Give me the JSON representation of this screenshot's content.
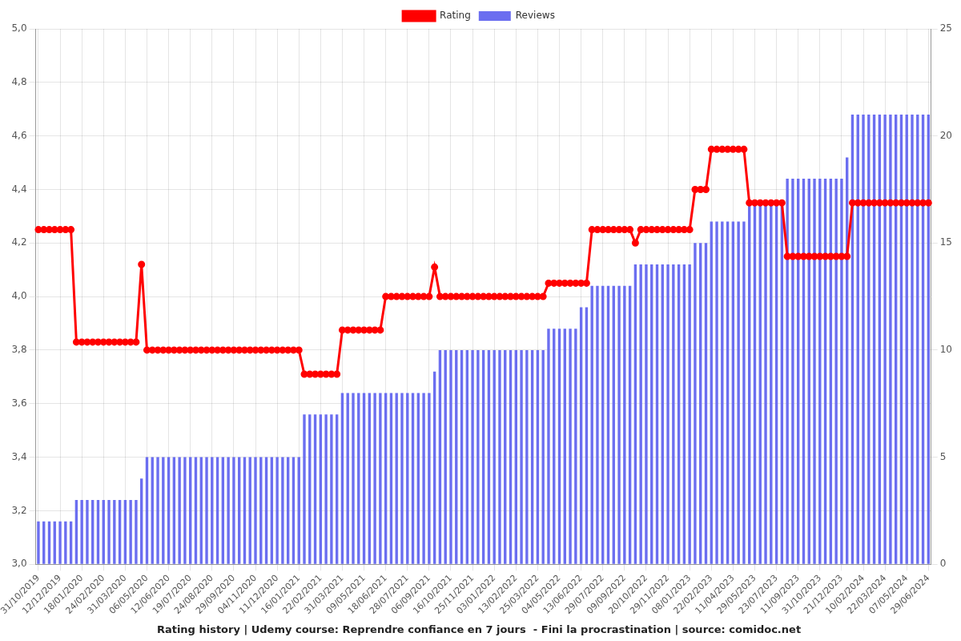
{
  "chart_data": {
    "type": "bar",
    "title": "Rating history | Udemy course: Reprendre confiance en 7 jours  - Fini la procrastination | source: comidoc.net",
    "categories": [
      "31/10/2019",
      null,
      null,
      null,
      "12/12/2019",
      null,
      null,
      null,
      "18/01/2020",
      null,
      null,
      null,
      "24/02/2020",
      null,
      null,
      null,
      "31/03/2020",
      null,
      null,
      null,
      "06/05/2020",
      null,
      null,
      null,
      "12/06/2020",
      null,
      null,
      null,
      "19/07/2020",
      null,
      null,
      null,
      "24/08/2020",
      null,
      null,
      null,
      "29/09/2020",
      null,
      null,
      null,
      "04/11/2020",
      null,
      null,
      null,
      "11/12/2020",
      null,
      null,
      null,
      "16/01/2021",
      null,
      null,
      null,
      "22/02/2021",
      null,
      null,
      null,
      "31/03/2021",
      null,
      null,
      null,
      "09/05/2021",
      null,
      null,
      null,
      "18/06/2021",
      null,
      null,
      null,
      "28/07/2021",
      null,
      null,
      null,
      "06/09/2021",
      null,
      null,
      null,
      "16/10/2021",
      null,
      null,
      null,
      "25/11/2021",
      null,
      null,
      null,
      "03/01/2022",
      null,
      null,
      null,
      "13/02/2022",
      null,
      null,
      null,
      "25/03/2022",
      null,
      null,
      null,
      "04/05/2022",
      null,
      null,
      null,
      "13/06/2022",
      null,
      null,
      null,
      "29/07/2022",
      null,
      null,
      null,
      "09/09/2022",
      null,
      null,
      null,
      "20/10/2022",
      null,
      null,
      null,
      "29/11/2022",
      null,
      null,
      null,
      "08/01/2023",
      null,
      null,
      null,
      "22/02/2023",
      null,
      null,
      null,
      "11/04/2023",
      null,
      null,
      null,
      "29/05/2023",
      null,
      null,
      null,
      "23/07/2023",
      null,
      null,
      null,
      "11/09/2023",
      null,
      null,
      null,
      "31/10/2023",
      null,
      null,
      null,
      "21/12/2023",
      null,
      null,
      null,
      "10/02/2024",
      null,
      null,
      null,
      "22/03/2024",
      null,
      null,
      null,
      "07/05/2024",
      null,
      null,
      null,
      "29/06/2024"
    ],
    "series": [
      {
        "name": "Rating",
        "type": "line",
        "color": "#ff0000",
        "marker": "circle",
        "values": [
          4.25,
          4.25,
          4.25,
          4.25,
          4.25,
          4.25,
          4.25,
          3.83,
          3.83,
          3.83,
          3.83,
          3.83,
          3.83,
          3.83,
          3.83,
          3.83,
          3.83,
          3.83,
          3.83,
          4.12,
          3.8,
          3.8,
          3.8,
          3.8,
          3.8,
          3.8,
          3.8,
          3.8,
          3.8,
          3.8,
          3.8,
          3.8,
          3.8,
          3.8,
          3.8,
          3.8,
          3.8,
          3.8,
          3.8,
          3.8,
          3.8,
          3.8,
          3.8,
          3.8,
          3.8,
          3.8,
          3.8,
          3.8,
          3.8,
          3.71,
          3.71,
          3.71,
          3.71,
          3.71,
          3.71,
          3.71,
          3.875,
          3.875,
          3.875,
          3.875,
          3.875,
          3.875,
          3.875,
          3.875,
          4.0,
          4.0,
          4.0,
          4.0,
          4.0,
          4.0,
          4.0,
          4.0,
          4.0,
          4.11,
          4.0,
          4.0,
          4.0,
          4.0,
          4.0,
          4.0,
          4.0,
          4.0,
          4.0,
          4.0,
          4.0,
          4.0,
          4.0,
          4.0,
          4.0,
          4.0,
          4.0,
          4.0,
          4.0,
          4.0,
          4.05,
          4.05,
          4.05,
          4.05,
          4.05,
          4.05,
          4.05,
          4.05,
          4.25,
          4.25,
          4.25,
          4.25,
          4.25,
          4.25,
          4.25,
          4.25,
          4.2,
          4.25,
          4.25,
          4.25,
          4.25,
          4.25,
          4.25,
          4.25,
          4.25,
          4.25,
          4.25,
          4.4,
          4.4,
          4.4,
          4.55,
          4.55,
          4.55,
          4.55,
          4.55,
          4.55,
          4.55,
          4.35,
          4.35,
          4.35,
          4.35,
          4.35,
          4.35,
          4.35,
          4.15,
          4.15,
          4.15,
          4.15,
          4.15,
          4.15,
          4.15,
          4.15,
          4.15,
          4.15,
          4.15,
          4.15,
          4.35,
          4.35,
          4.35,
          4.35,
          4.35,
          4.35,
          4.35,
          4.35,
          4.35,
          4.35,
          4.35,
          4.35,
          4.35,
          4.35,
          4.35
        ]
      },
      {
        "name": "Reviews",
        "type": "bar",
        "color": "#6b6ef0",
        "axis": "y2",
        "values": [
          2,
          2,
          2,
          2,
          2,
          2,
          2,
          3,
          3,
          3,
          3,
          3,
          3,
          3,
          3,
          3,
          3,
          3,
          3,
          4,
          5,
          5,
          5,
          5,
          5,
          5,
          5,
          5,
          5,
          5,
          5,
          5,
          5,
          5,
          5,
          5,
          5,
          5,
          5,
          5,
          5,
          5,
          5,
          5,
          5,
          5,
          5,
          5,
          5,
          7,
          7,
          7,
          7,
          7,
          7,
          7,
          8,
          8,
          8,
          8,
          8,
          8,
          8,
          8,
          8,
          8,
          8,
          8,
          8,
          8,
          8,
          8,
          8,
          9,
          10,
          10,
          10,
          10,
          10,
          10,
          10,
          10,
          10,
          10,
          10,
          10,
          10,
          10,
          10,
          10,
          10,
          10,
          10,
          10,
          11,
          11,
          11,
          11,
          11,
          11,
          12,
          12,
          13,
          13,
          13,
          13,
          13,
          13,
          13,
          13,
          14,
          14,
          14,
          14,
          14,
          14,
          14,
          14,
          14,
          14,
          14,
          15,
          15,
          15,
          16,
          16,
          16,
          16,
          16,
          16,
          16,
          17,
          17,
          17,
          17,
          17,
          17,
          17,
          18,
          18,
          18,
          18,
          18,
          18,
          18,
          18,
          18,
          18,
          18,
          19,
          21,
          21,
          21,
          21,
          21,
          21,
          21,
          21,
          21,
          21,
          21,
          21,
          21,
          21,
          21
        ]
      }
    ],
    "ylim": [
      3,
      5
    ],
    "yticks": [
      {
        "value": 3,
        "label": "3,0"
      },
      {
        "value": 3.2,
        "label": "3,2"
      },
      {
        "value": 3.4,
        "label": "3,4"
      },
      {
        "value": 3.6,
        "label": "3,6"
      },
      {
        "value": 3.8,
        "label": "3,8"
      },
      {
        "value": 4,
        "label": "4,0"
      },
      {
        "value": 4.2,
        "label": "4,2"
      },
      {
        "value": 4.4,
        "label": "4,4"
      },
      {
        "value": 4.6,
        "label": "4,6"
      },
      {
        "value": 4.8,
        "label": "4,8"
      },
      {
        "value": 5,
        "label": "5,0"
      }
    ],
    "y2lim": [
      0,
      25
    ],
    "y2ticks": [
      0,
      5,
      10,
      15,
      20,
      25
    ],
    "grid": true,
    "legend": "top"
  }
}
